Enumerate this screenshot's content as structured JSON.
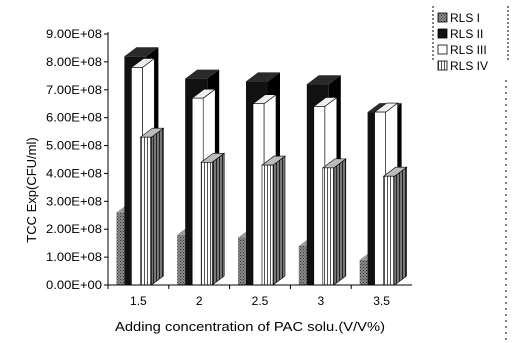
{
  "chart_data": {
    "type": "bar",
    "style": "3d-clustered-columns",
    "categories": [
      "1.5",
      "2",
      "2.5",
      "3",
      "3.5"
    ],
    "series": [
      {
        "name": "RLS I",
        "values": [
          260000000.0,
          180000000.0,
          170000000.0,
          140000000.0,
          90000000.0
        ],
        "color": "#666666",
        "pattern": "dots"
      },
      {
        "name": "RLS II",
        "values": [
          820000000.0,
          740000000.0,
          730000000.0,
          720000000.0,
          620000000.0
        ],
        "color": "#111111",
        "pattern": "solid"
      },
      {
        "name": "RLS III",
        "values": [
          780000000.0,
          670000000.0,
          650000000.0,
          640000000.0,
          620000000.0
        ],
        "color": "#ffffff",
        "pattern": "white"
      },
      {
        "name": "RLS IV",
        "values": [
          530000000.0,
          440000000.0,
          430000000.0,
          420000000.0,
          390000000.0
        ],
        "color": "#ffffff",
        "pattern": "stripes"
      }
    ],
    "ylim": [
      0,
      900000000.0
    ],
    "yticks": [
      "0.00E+00",
      "1.00E+08",
      "2.00E+08",
      "3.00E+08",
      "4.00E+08",
      "5.00E+08",
      "6.00E+08",
      "7.00E+08",
      "8.00E+08",
      "9.00E+08"
    ],
    "xlabel": "Adding concentration of PAC solu.(V/V%)",
    "ylabel": "TCC  Exp(CFU/ml)",
    "legend_position": "right",
    "grid": false
  }
}
